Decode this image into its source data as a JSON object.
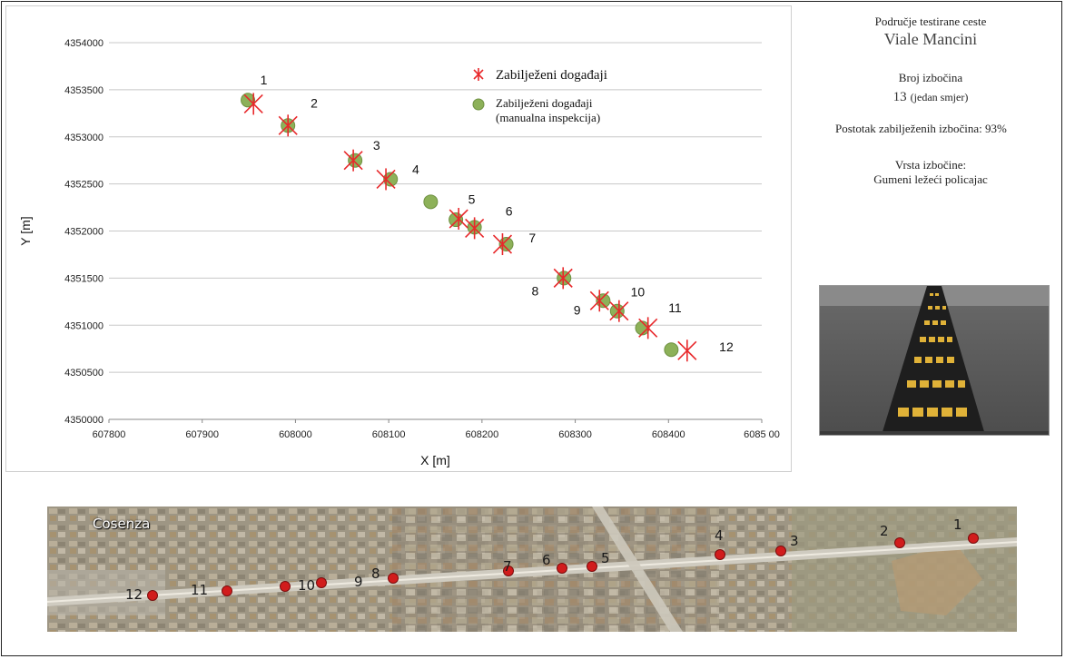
{
  "chart_data": {
    "type": "scatter",
    "xlabel": "X [m]",
    "ylabel": "Y [m]",
    "xlim": [
      607800,
      608500
    ],
    "ylim": [
      4350000,
      4354000
    ],
    "x_ticks": [
      "607800",
      "607900",
      "608000",
      "608100",
      "608200",
      "608300",
      "608400",
      "6085 00"
    ],
    "y_ticks": [
      "4350000",
      "4350500",
      "4351000",
      "4351500",
      "4352000",
      "4352500",
      "4353000",
      "4353500",
      "4354000"
    ],
    "grid": "horizontal",
    "legend_position": "top-right",
    "series": [
      {
        "name": "Zabilježeni događaji",
        "marker": "cross",
        "color": "#e8282b",
        "points": [
          {
            "x": 607955,
            "y": 4353350
          },
          {
            "x": 607992,
            "y": 4353120
          },
          {
            "x": 608062,
            "y": 4352750
          },
          {
            "x": 608097,
            "y": 4352550
          },
          {
            "x": 608175,
            "y": 4352130
          },
          {
            "x": 608192,
            "y": 4352030
          },
          {
            "x": 608222,
            "y": 4351860
          },
          {
            "x": 608287,
            "y": 4351500
          },
          {
            "x": 608326,
            "y": 4351260
          },
          {
            "x": 608347,
            "y": 4351150
          },
          {
            "x": 608378,
            "y": 4350970
          },
          {
            "x": 608420,
            "y": 4350730
          }
        ]
      },
      {
        "name": "Zabilježeni događaji (manualna inspekcija)",
        "marker": "circle",
        "color": "#8db159",
        "points": [
          {
            "x": 607949,
            "y": 4353390
          },
          {
            "x": 607992,
            "y": 4353120
          },
          {
            "x": 608064,
            "y": 4352750
          },
          {
            "x": 608102,
            "y": 4352550
          },
          {
            "x": 608145,
            "y": 4352310
          },
          {
            "x": 608172,
            "y": 4352120
          },
          {
            "x": 608192,
            "y": 4352040
          },
          {
            "x": 608226,
            "y": 4351860
          },
          {
            "x": 608288,
            "y": 4351500
          },
          {
            "x": 608330,
            "y": 4351260
          },
          {
            "x": 608345,
            "y": 4351150
          },
          {
            "x": 608372,
            "y": 4350970
          },
          {
            "x": 608403,
            "y": 4350740
          }
        ]
      }
    ],
    "annotations": [
      {
        "text": "1",
        "x": 607966,
        "y": 4353555
      },
      {
        "text": "2",
        "x": 608020,
        "y": 4353310
      },
      {
        "text": "3",
        "x": 608087,
        "y": 4352865
      },
      {
        "text": "4",
        "x": 608129,
        "y": 4352605
      },
      {
        "text": "5",
        "x": 608189,
        "y": 4352290
      },
      {
        "text": "6",
        "x": 608229,
        "y": 4352165
      },
      {
        "text": "7",
        "x": 608254,
        "y": 4351880
      },
      {
        "text": "8",
        "x": 608257,
        "y": 4351315
      },
      {
        "text": "9",
        "x": 608302,
        "y": 4351115
      },
      {
        "text": "10",
        "x": 608367,
        "y": 4351305
      },
      {
        "text": "11",
        "x": 608407,
        "y": 4351135
      },
      {
        "text": "12",
        "x": 608462,
        "y": 4350725
      }
    ]
  },
  "info": {
    "area_label": "Područje testirane ceste",
    "road_name": "Viale Mancini",
    "bumps_label": "Broj izbočina",
    "bumps_count": "13",
    "bumps_direction": "(jedan smjer)",
    "percent_text": "Postotak zabilježenih izbočina: 93%",
    "type_label": "Vrsta izbočine:",
    "type_value": "Gumeni ležeći policajac"
  },
  "aerial": {
    "city_label": "Cosenza",
    "points": [
      "12",
      "11",
      "10",
      "9",
      "8",
      "7",
      "6",
      "5",
      "4",
      "3",
      "2",
      "1"
    ]
  },
  "colors": {
    "cross": "#e8282b",
    "circle": "#8db159",
    "grid": "#c8c8c8",
    "map_marker": "#d11c1c"
  }
}
